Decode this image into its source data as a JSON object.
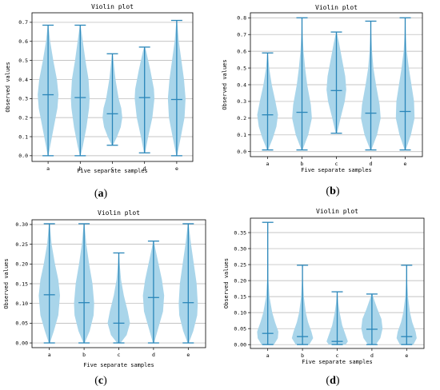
{
  "figure": {
    "panel_letters": [
      "a",
      "b",
      "c",
      "d"
    ],
    "colors": {
      "body": "#a9d5ea",
      "line": "#2a86b9",
      "grid": "#b0b0b0",
      "axis": "#000000"
    }
  },
  "chart_data": [
    {
      "type": "violin",
      "title": "Violin plot",
      "xlabel": "Five separate samples",
      "ylabel": "Observed values",
      "caption": "(a)",
      "categories": [
        "a",
        "b",
        "c",
        "d",
        "e"
      ],
      "ylim": [
        -0.03,
        0.75
      ],
      "yticks": [
        0.0,
        0.1,
        0.2,
        0.3,
        0.4,
        0.5,
        0.6,
        0.7
      ],
      "ytick_labels": [
        "0.0",
        "0.1",
        "0.2",
        "0.3",
        "0.4",
        "0.5",
        "0.6",
        "0.7"
      ],
      "grid": "y",
      "series": [
        {
          "category": "a",
          "min": 0.0,
          "median": 0.32,
          "max": 0.685,
          "density": [
            [
              0.0,
              0.03
            ],
            [
              0.05,
              0.2
            ],
            [
              0.15,
              0.55
            ],
            [
              0.25,
              0.9
            ],
            [
              0.32,
              1.0
            ],
            [
              0.4,
              0.85
            ],
            [
              0.5,
              0.5
            ],
            [
              0.6,
              0.2
            ],
            [
              0.685,
              0.03
            ]
          ]
        },
        {
          "category": "b",
          "min": 0.0,
          "median": 0.305,
          "max": 0.685,
          "density": [
            [
              0.0,
              0.03
            ],
            [
              0.05,
              0.25
            ],
            [
              0.15,
              0.6
            ],
            [
              0.25,
              0.85
            ],
            [
              0.3,
              0.9
            ],
            [
              0.4,
              0.8
            ],
            [
              0.5,
              0.5
            ],
            [
              0.6,
              0.25
            ],
            [
              0.685,
              0.03
            ]
          ]
        },
        {
          "category": "c",
          "min": 0.055,
          "median": 0.22,
          "max": 0.535,
          "density": [
            [
              0.055,
              0.05
            ],
            [
              0.1,
              0.45
            ],
            [
              0.15,
              0.8
            ],
            [
              0.2,
              0.95
            ],
            [
              0.25,
              0.85
            ],
            [
              0.3,
              0.6
            ],
            [
              0.4,
              0.3
            ],
            [
              0.5,
              0.1
            ],
            [
              0.535,
              0.03
            ]
          ]
        },
        {
          "category": "d",
          "min": 0.015,
          "median": 0.305,
          "max": 0.57,
          "density": [
            [
              0.015,
              0.05
            ],
            [
              0.1,
              0.35
            ],
            [
              0.2,
              0.75
            ],
            [
              0.3,
              0.95
            ],
            [
              0.35,
              0.9
            ],
            [
              0.45,
              0.55
            ],
            [
              0.55,
              0.15
            ],
            [
              0.57,
              0.03
            ]
          ]
        },
        {
          "category": "e",
          "min": 0.0,
          "median": 0.295,
          "max": 0.71,
          "density": [
            [
              0.0,
              0.03
            ],
            [
              0.1,
              0.4
            ],
            [
              0.2,
              0.75
            ],
            [
              0.3,
              0.85
            ],
            [
              0.4,
              0.7
            ],
            [
              0.5,
              0.45
            ],
            [
              0.6,
              0.2
            ],
            [
              0.71,
              0.03
            ]
          ]
        }
      ]
    },
    {
      "type": "violin",
      "title": "Violin plot",
      "xlabel": "Five separate samples",
      "ylabel": "Observed values",
      "caption": "(b)",
      "categories": [
        "a",
        "b",
        "c",
        "d",
        "e"
      ],
      "ylim": [
        -0.03,
        0.83
      ],
      "yticks": [
        0.0,
        0.1,
        0.2,
        0.3,
        0.4,
        0.5,
        0.6,
        0.7,
        0.8
      ],
      "ytick_labels": [
        "0.0",
        "0.1",
        "0.2",
        "0.3",
        "0.4",
        "0.5",
        "0.6",
        "0.7",
        "0.8"
      ],
      "grid": "y",
      "series": [
        {
          "category": "a",
          "min": 0.01,
          "median": 0.22,
          "max": 0.59,
          "density": [
            [
              0.01,
              0.05
            ],
            [
              0.08,
              0.5
            ],
            [
              0.15,
              0.85
            ],
            [
              0.22,
              1.0
            ],
            [
              0.3,
              0.75
            ],
            [
              0.4,
              0.4
            ],
            [
              0.5,
              0.15
            ],
            [
              0.59,
              0.03
            ]
          ]
        },
        {
          "category": "b",
          "min": 0.01,
          "median": 0.235,
          "max": 0.8,
          "density": [
            [
              0.01,
              0.05
            ],
            [
              0.1,
              0.6
            ],
            [
              0.2,
              0.95
            ],
            [
              0.28,
              0.85
            ],
            [
              0.4,
              0.5
            ],
            [
              0.5,
              0.3
            ],
            [
              0.6,
              0.15
            ],
            [
              0.7,
              0.06
            ],
            [
              0.8,
              0.02
            ]
          ]
        },
        {
          "category": "c",
          "min": 0.11,
          "median": 0.365,
          "max": 0.715,
          "density": [
            [
              0.11,
              0.06
            ],
            [
              0.2,
              0.4
            ],
            [
              0.3,
              0.8
            ],
            [
              0.37,
              0.95
            ],
            [
              0.45,
              0.85
            ],
            [
              0.55,
              0.55
            ],
            [
              0.65,
              0.25
            ],
            [
              0.715,
              0.03
            ]
          ]
        },
        {
          "category": "d",
          "min": 0.01,
          "median": 0.23,
          "max": 0.78,
          "density": [
            [
              0.01,
              0.05
            ],
            [
              0.1,
              0.6
            ],
            [
              0.2,
              0.95
            ],
            [
              0.28,
              0.85
            ],
            [
              0.4,
              0.5
            ],
            [
              0.5,
              0.25
            ],
            [
              0.6,
              0.12
            ],
            [
              0.7,
              0.05
            ],
            [
              0.78,
              0.02
            ]
          ]
        },
        {
          "category": "e",
          "min": 0.01,
          "median": 0.24,
          "max": 0.8,
          "density": [
            [
              0.01,
              0.05
            ],
            [
              0.1,
              0.55
            ],
            [
              0.2,
              0.9
            ],
            [
              0.3,
              0.85
            ],
            [
              0.4,
              0.6
            ],
            [
              0.5,
              0.35
            ],
            [
              0.6,
              0.15
            ],
            [
              0.7,
              0.06
            ],
            [
              0.8,
              0.02
            ]
          ]
        }
      ]
    },
    {
      "type": "violin",
      "title": "Violin plot",
      "xlabel": "Five separate samples",
      "ylabel": "Observed values",
      "caption": "(c)",
      "categories": [
        "a",
        "b",
        "c",
        "d",
        "e"
      ],
      "ylim": [
        -0.012,
        0.312
      ],
      "yticks": [
        0.0,
        0.05,
        0.1,
        0.15,
        0.2,
        0.25,
        0.3
      ],
      "ytick_labels": [
        "0.00",
        "0.05",
        "0.10",
        "0.15",
        "0.20",
        "0.25",
        "0.30"
      ],
      "grid": "y",
      "series": [
        {
          "category": "a",
          "min": 0.0,
          "median": 0.122,
          "max": 0.302,
          "density": [
            [
              0.0,
              0.05
            ],
            [
              0.03,
              0.4
            ],
            [
              0.07,
              0.8
            ],
            [
              0.12,
              0.95
            ],
            [
              0.16,
              0.8
            ],
            [
              0.2,
              0.5
            ],
            [
              0.25,
              0.2
            ],
            [
              0.302,
              0.03
            ]
          ]
        },
        {
          "category": "b",
          "min": 0.0,
          "median": 0.102,
          "max": 0.302,
          "density": [
            [
              0.0,
              0.05
            ],
            [
              0.03,
              0.5
            ],
            [
              0.07,
              0.85
            ],
            [
              0.1,
              0.9
            ],
            [
              0.15,
              0.75
            ],
            [
              0.2,
              0.45
            ],
            [
              0.25,
              0.2
            ],
            [
              0.302,
              0.03
            ]
          ]
        },
        {
          "category": "c",
          "min": 0.0,
          "median": 0.05,
          "max": 0.228,
          "density": [
            [
              0.0,
              0.15
            ],
            [
              0.02,
              0.7
            ],
            [
              0.05,
              1.0
            ],
            [
              0.08,
              0.8
            ],
            [
              0.12,
              0.45
            ],
            [
              0.16,
              0.2
            ],
            [
              0.2,
              0.08
            ],
            [
              0.228,
              0.02
            ]
          ]
        },
        {
          "category": "d",
          "min": 0.0,
          "median": 0.115,
          "max": 0.258,
          "density": [
            [
              0.0,
              0.05
            ],
            [
              0.04,
              0.45
            ],
            [
              0.08,
              0.85
            ],
            [
              0.12,
              0.95
            ],
            [
              0.16,
              0.75
            ],
            [
              0.2,
              0.45
            ],
            [
              0.24,
              0.15
            ],
            [
              0.258,
              0.03
            ]
          ]
        },
        {
          "category": "e",
          "min": 0.0,
          "median": 0.102,
          "max": 0.302,
          "density": [
            [
              0.0,
              0.05
            ],
            [
              0.03,
              0.45
            ],
            [
              0.07,
              0.8
            ],
            [
              0.1,
              0.85
            ],
            [
              0.15,
              0.75
            ],
            [
              0.2,
              0.5
            ],
            [
              0.25,
              0.25
            ],
            [
              0.302,
              0.03
            ]
          ]
        }
      ]
    },
    {
      "type": "violin",
      "title": "Violin plot",
      "xlabel": "Five separate samples",
      "ylabel": "Observed values",
      "caption": "(d)",
      "categories": [
        "a",
        "b",
        "c",
        "d",
        "e"
      ],
      "ylim": [
        -0.012,
        0.395
      ],
      "yticks": [
        0.0,
        0.05,
        0.1,
        0.15,
        0.2,
        0.25,
        0.3,
        0.35
      ],
      "ytick_labels": [
        "0.00",
        "0.05",
        "0.10",
        "0.15",
        "0.20",
        "0.25",
        "0.30",
        "0.35"
      ],
      "grid": "y",
      "series": [
        {
          "category": "a",
          "min": 0.0,
          "median": 0.035,
          "max": 0.382,
          "density": [
            [
              0.0,
              0.55
            ],
            [
              0.02,
              0.9
            ],
            [
              0.04,
              0.95
            ],
            [
              0.07,
              0.65
            ],
            [
              0.1,
              0.4
            ],
            [
              0.15,
              0.15
            ],
            [
              0.2,
              0.06
            ],
            [
              0.3,
              0.02
            ],
            [
              0.382,
              0.01
            ]
          ]
        },
        {
          "category": "b",
          "min": 0.0,
          "median": 0.025,
          "max": 0.248,
          "density": [
            [
              0.0,
              0.6
            ],
            [
              0.02,
              0.95
            ],
            [
              0.04,
              0.8
            ],
            [
              0.07,
              0.5
            ],
            [
              0.1,
              0.3
            ],
            [
              0.15,
              0.12
            ],
            [
              0.2,
              0.04
            ],
            [
              0.248,
              0.01
            ]
          ]
        },
        {
          "category": "c",
          "min": 0.0,
          "median": 0.01,
          "max": 0.165,
          "density": [
            [
              0.0,
              0.75
            ],
            [
              0.01,
              0.95
            ],
            [
              0.03,
              0.75
            ],
            [
              0.06,
              0.45
            ],
            [
              0.1,
              0.22
            ],
            [
              0.13,
              0.1
            ],
            [
              0.165,
              0.02
            ]
          ]
        },
        {
          "category": "d",
          "min": 0.0,
          "median": 0.048,
          "max": 0.158,
          "density": [
            [
              0.0,
              0.35
            ],
            [
              0.02,
              0.75
            ],
            [
              0.05,
              0.95
            ],
            [
              0.08,
              0.85
            ],
            [
              0.11,
              0.5
            ],
            [
              0.14,
              0.2
            ],
            [
              0.158,
              0.04
            ]
          ]
        },
        {
          "category": "e",
          "min": 0.0,
          "median": 0.025,
          "max": 0.248,
          "density": [
            [
              0.0,
              0.6
            ],
            [
              0.02,
              0.9
            ],
            [
              0.04,
              0.8
            ],
            [
              0.07,
              0.5
            ],
            [
              0.1,
              0.3
            ],
            [
              0.15,
              0.12
            ],
            [
              0.2,
              0.04
            ],
            [
              0.248,
              0.01
            ]
          ]
        }
      ]
    }
  ]
}
